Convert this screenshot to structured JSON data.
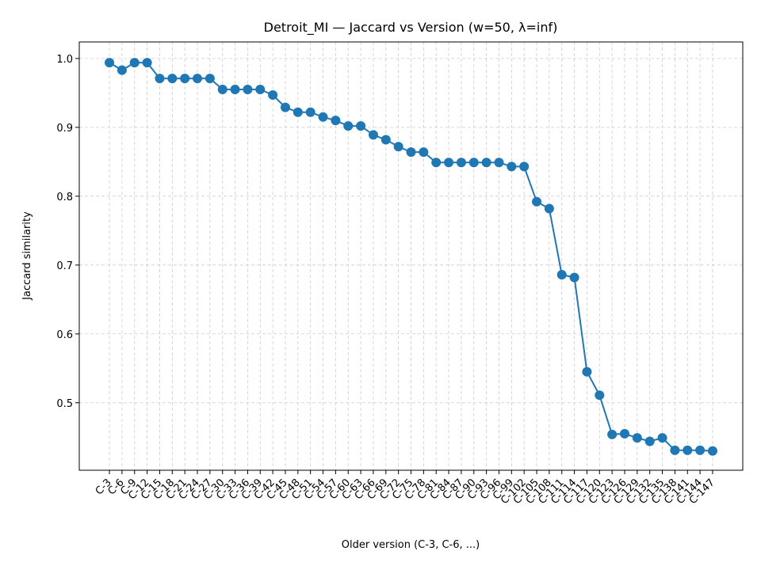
{
  "chart_data": {
    "type": "line",
    "title": "Detroit_MI — Jaccard vs Version (w=50, λ=inf)",
    "x_label": "Older version (C-3, C-6, ...)",
    "y_label": "Jaccard similarity",
    "categories": [
      "C-3",
      "C-6",
      "C-9",
      "C-12",
      "C-15",
      "C-18",
      "C-21",
      "C-24",
      "C-27",
      "C-30",
      "C-33",
      "C-36",
      "C-39",
      "C-42",
      "C-45",
      "C-48",
      "C-51",
      "C-54",
      "C-57",
      "C-60",
      "C-63",
      "C-66",
      "C-69",
      "C-72",
      "C-75",
      "C-78",
      "C-81",
      "C-84",
      "C-87",
      "C-90",
      "C-93",
      "C-96",
      "C-99",
      "C-102",
      "C-105",
      "C-108",
      "C-111",
      "C-114",
      "C-117",
      "C-120",
      "C-123",
      "C-126",
      "C-129",
      "C-132",
      "C-135",
      "C-138",
      "C-141",
      "C-144",
      "C-147"
    ],
    "series": [
      {
        "name": "Jaccard similarity",
        "color": "#1f77b4",
        "values": [
          0.994,
          0.983,
          0.994,
          0.994,
          0.971,
          0.971,
          0.971,
          0.971,
          0.971,
          0.955,
          0.955,
          0.955,
          0.955,
          0.947,
          0.929,
          0.922,
          0.922,
          0.915,
          0.91,
          0.902,
          0.902,
          0.889,
          0.882,
          0.872,
          0.864,
          0.864,
          0.849,
          0.849,
          0.849,
          0.849,
          0.849,
          0.849,
          0.843,
          0.843,
          0.792,
          0.782,
          0.686,
          0.682,
          0.545,
          0.511,
          0.454,
          0.455,
          0.449,
          0.444,
          0.449,
          0.431,
          0.431,
          0.431,
          0.43
        ]
      }
    ],
    "ylim": [
      0.402,
      1.024
    ],
    "yticks": [
      0.5,
      0.6,
      0.7,
      0.8,
      0.9,
      {
        "value": 1.0,
        "label": "1.0"
      }
    ],
    "grid": true
  }
}
